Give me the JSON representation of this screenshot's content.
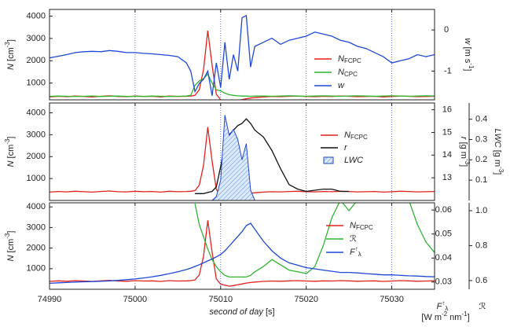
{
  "chart_data": [
    {
      "type": "line",
      "legend": "center-right",
      "grid": true,
      "x": [
        74990,
        74991,
        74992,
        74993,
        74994,
        74995,
        74996,
        74997,
        74998,
        74999,
        75000,
        75001,
        75002,
        75003,
        75004,
        75005,
        75006,
        75006.5,
        75007,
        75007.5,
        75008,
        75008.5,
        75009,
        75009.5,
        75010,
        75010.5,
        75011,
        75011.5,
        75012,
        75012.5,
        75013,
        75013.5,
        75014,
        75015,
        75016,
        75017,
        75018,
        75019,
        75020,
        75021,
        75022,
        75023,
        75024,
        75025,
        75026,
        75027,
        75028,
        75029,
        75030,
        75031,
        75032,
        75033,
        75034,
        75035
      ],
      "xlim": [
        74990,
        75035
      ],
      "ylabel": "N [cm-3]",
      "ylim": [
        250,
        4300
      ],
      "yticks": [
        1000,
        2000,
        3000,
        4000
      ],
      "y2label": "w [m s-1]",
      "y2lim": [
        -1.7,
        0.5
      ],
      "y2ticks": [
        -1,
        0
      ],
      "series": [
        {
          "name": "NFCPC",
          "color": "#e3201b",
          "values": [
            380,
            410,
            390,
            420,
            400,
            380,
            410,
            430,
            400,
            390,
            420,
            400,
            410,
            380,
            420,
            400,
            410,
            420,
            450,
            700,
            1600,
            3350,
            1800,
            500,
            250,
            200,
            150,
            180,
            220,
            260,
            300,
            330,
            350,
            380,
            400,
            390,
            410,
            420,
            400,
            390,
            410,
            400,
            420,
            410,
            390,
            400,
            410,
            380,
            400,
            420,
            410,
            390,
            400,
            410
          ]
        },
        {
          "name": "NCPC",
          "color": "#2fb52f",
          "values": [
            400,
            420,
            410,
            400,
            410,
            420,
            400,
            410,
            420,
            400,
            410,
            400,
            420,
            410,
            400,
            410,
            420,
            450,
            900,
            1100,
            1200,
            1400,
            1000,
            700,
            650,
            550,
            480,
            450,
            430,
            420,
            420,
            410,
            420,
            420,
            410,
            420,
            430,
            420,
            410,
            420,
            430,
            420,
            410,
            420,
            430,
            420,
            410,
            420,
            430,
            420,
            410,
            420,
            430,
            420
          ]
        },
        {
          "name": "w",
          "color": "#1f48d6",
          "axis": "y2",
          "values": [
            -0.68,
            -0.64,
            -0.6,
            -0.55,
            -0.53,
            -0.52,
            -0.53,
            -0.5,
            -0.52,
            -0.55,
            -0.55,
            -0.57,
            -0.58,
            -0.6,
            -0.62,
            -0.65,
            -0.8,
            -1.0,
            -1.5,
            -1.3,
            -1.2,
            -1.0,
            -1.6,
            -0.8,
            -1.4,
            -0.3,
            -1.2,
            -0.6,
            -1.0,
            0.3,
            0.35,
            -0.9,
            -0.4,
            -0.3,
            -0.2,
            -0.35,
            -0.25,
            -0.2,
            -0.15,
            -0.05,
            -0.1,
            -0.15,
            -0.25,
            -0.3,
            -0.4,
            -0.45,
            -0.55,
            -0.65,
            -0.8,
            -0.75,
            -0.7,
            -0.6,
            -0.65,
            -0.6
          ]
        }
      ]
    },
    {
      "type": "line",
      "legend": "center-right",
      "grid": true,
      "x": [
        74990,
        74991,
        74992,
        74993,
        74994,
        74995,
        74996,
        74997,
        74998,
        74999,
        75000,
        75001,
        75002,
        75003,
        75004,
        75005,
        75006,
        75006.5,
        75007,
        75007.5,
        75008,
        75008.5,
        75009,
        75009.5,
        75010,
        75010.5,
        75011,
        75011.5,
        75012,
        75012.5,
        75013,
        75013.5,
        75014,
        75015,
        75016,
        75017,
        75018,
        75019,
        75020,
        75021,
        75022,
        75023,
        75024,
        75025,
        75026,
        75027,
        75028,
        75029,
        75030,
        75031,
        75032,
        75033,
        75034,
        75035
      ],
      "xlim": [
        74990,
        75035
      ],
      "ylabel": "N [cm-3]",
      "ylim": [
        0,
        4450
      ],
      "yticks": [
        1000,
        2000,
        3000,
        4000
      ],
      "y2label": "r [g m-3]",
      "y2lim": [
        12,
        16.3
      ],
      "y2ticks": [
        13,
        14,
        15,
        16
      ],
      "y3label": "LWC [g m-3]",
      "y3lim": [
        0,
        0.48
      ],
      "y3ticks": [
        0.1,
        0.2,
        0.3,
        0.4
      ],
      "series": [
        {
          "name": "NFCPC",
          "color": "#e3201b",
          "values": [
            380,
            410,
            390,
            420,
            400,
            380,
            410,
            430,
            400,
            390,
            420,
            400,
            410,
            380,
            420,
            400,
            410,
            420,
            450,
            700,
            1600,
            3350,
            1800,
            500,
            250,
            200,
            150,
            180,
            220,
            260,
            300,
            330,
            350,
            380,
            400,
            390,
            410,
            420,
            400,
            390,
            410,
            400,
            420,
            410,
            390,
            400,
            410,
            380,
            400,
            420,
            410,
            390,
            400,
            410
          ]
        },
        {
          "name": "r",
          "color": "#111111",
          "axis": "y2",
          "values": [
            null,
            null,
            null,
            null,
            null,
            null,
            null,
            null,
            null,
            null,
            null,
            null,
            null,
            null,
            null,
            null,
            null,
            null,
            12.3,
            12.3,
            12.3,
            12.35,
            12.4,
            12.6,
            13.5,
            14.5,
            14.9,
            15.1,
            15.3,
            15.4,
            15.6,
            15.4,
            15.1,
            14.8,
            14.2,
            13.4,
            12.7,
            12.5,
            12.4,
            12.45,
            12.5,
            12.5,
            12.4,
            12.4,
            null,
            null,
            null,
            null,
            null,
            null,
            null,
            null,
            null,
            null
          ]
        },
        {
          "name": "LWC",
          "color": "#1f48d6",
          "axis": "y3",
          "style": "area",
          "values": [
            null,
            null,
            null,
            null,
            null,
            null,
            null,
            null,
            null,
            null,
            null,
            null,
            null,
            null,
            null,
            null,
            null,
            null,
            null,
            null,
            null,
            null,
            0,
            0.02,
            0.1,
            0.42,
            0.32,
            0.35,
            0.3,
            0.2,
            0.28,
            0.05,
            0,
            null,
            null,
            null,
            null,
            null,
            null,
            null,
            null,
            null,
            null,
            null,
            null,
            null,
            null,
            null,
            null,
            null,
            null,
            null,
            null,
            null
          ]
        }
      ]
    },
    {
      "type": "line",
      "legend": "center-right",
      "grid": true,
      "x": [
        74990,
        74991,
        74992,
        74993,
        74994,
        74995,
        74996,
        74997,
        74998,
        74999,
        75000,
        75001,
        75002,
        75003,
        75004,
        75005,
        75006,
        75006.5,
        75007,
        75007.5,
        75008,
        75008.5,
        75009,
        75009.5,
        75010,
        75010.5,
        75011,
        75011.5,
        75012,
        75012.5,
        75013,
        75013.5,
        75014,
        75015,
        75016,
        75017,
        75018,
        75019,
        75020,
        75021,
        75022,
        75023,
        75024,
        75025,
        75026,
        75027,
        75028,
        75029,
        75030,
        75031,
        75032,
        75033,
        75034,
        75035
      ],
      "xlim": [
        74990,
        75035
      ],
      "xticks": [
        74990,
        75000,
        75010,
        75020,
        75030
      ],
      "xlabel": "second of day [s]",
      "ylabel": "N [cm-3]",
      "ylim": [
        0,
        4200
      ],
      "yticks": [
        1000,
        2000,
        3000,
        4000
      ],
      "y2label": "F↑λ",
      "y2unit": "[W m-2 nm-1]",
      "y2lim": [
        0.027,
        0.063
      ],
      "y2ticks": [
        0.03,
        0.04,
        0.05,
        0.06
      ],
      "y3label": "ℛ",
      "y3lim": [
        0.55,
        1.045
      ],
      "y3ticks": [
        0.6,
        0.8,
        {
          "value": 1,
          "label": "1.0"
        }
      ],
      "series": [
        {
          "name": "NFCPC",
          "color": "#e3201b",
          "values": [
            380,
            410,
            390,
            420,
            400,
            380,
            410,
            430,
            400,
            390,
            420,
            400,
            410,
            380,
            420,
            400,
            410,
            420,
            450,
            700,
            1600,
            3350,
            1800,
            500,
            250,
            200,
            150,
            180,
            220,
            260,
            300,
            330,
            350,
            380,
            400,
            390,
            410,
            420,
            400,
            390,
            410,
            400,
            420,
            410,
            390,
            400,
            410,
            380,
            400,
            420,
            410,
            390,
            400,
            410
          ]
        },
        {
          "name": "ℛ",
          "color": "#2fb52f",
          "axis": "y3",
          "values": [
            null,
            null,
            null,
            null,
            null,
            null,
            null,
            null,
            null,
            null,
            null,
            null,
            null,
            null,
            null,
            null,
            null,
            null,
            1.04,
            0.92,
            0.85,
            0.78,
            0.72,
            0.68,
            0.65,
            0.63,
            0.62,
            0.62,
            0.62,
            0.62,
            0.62,
            0.63,
            0.65,
            0.68,
            0.72,
            0.69,
            0.66,
            0.65,
            0.64,
            0.68,
            0.8,
            0.96,
            1.06,
            1.0,
            1.06,
            null,
            null,
            null,
            null,
            null,
            1.06,
            0.92,
            0.82,
            0.76
          ]
        },
        {
          "name": "F↑λ",
          "color": "#1f48d6",
          "axis": "y2",
          "values": [
            0.0295,
            0.0297,
            0.0298,
            0.03,
            0.0301,
            0.0302,
            0.0303,
            0.0305,
            0.0307,
            0.031,
            0.0313,
            0.0317,
            0.0322,
            0.0328,
            0.0335,
            0.0343,
            0.0352,
            0.0358,
            0.0365,
            0.0372,
            0.038,
            0.0388,
            0.0396,
            0.0405,
            0.0415,
            0.043,
            0.045,
            0.047,
            0.049,
            0.051,
            0.0535,
            0.0545,
            0.052,
            0.047,
            0.043,
            0.04,
            0.038,
            0.037,
            0.036,
            0.0355,
            0.035,
            0.0345,
            0.034,
            0.034,
            0.0338,
            0.0335,
            0.0333,
            0.033,
            0.033,
            0.0328,
            0.0326,
            0.0325,
            0.0323,
            0.0322
          ]
        }
      ]
    }
  ]
}
